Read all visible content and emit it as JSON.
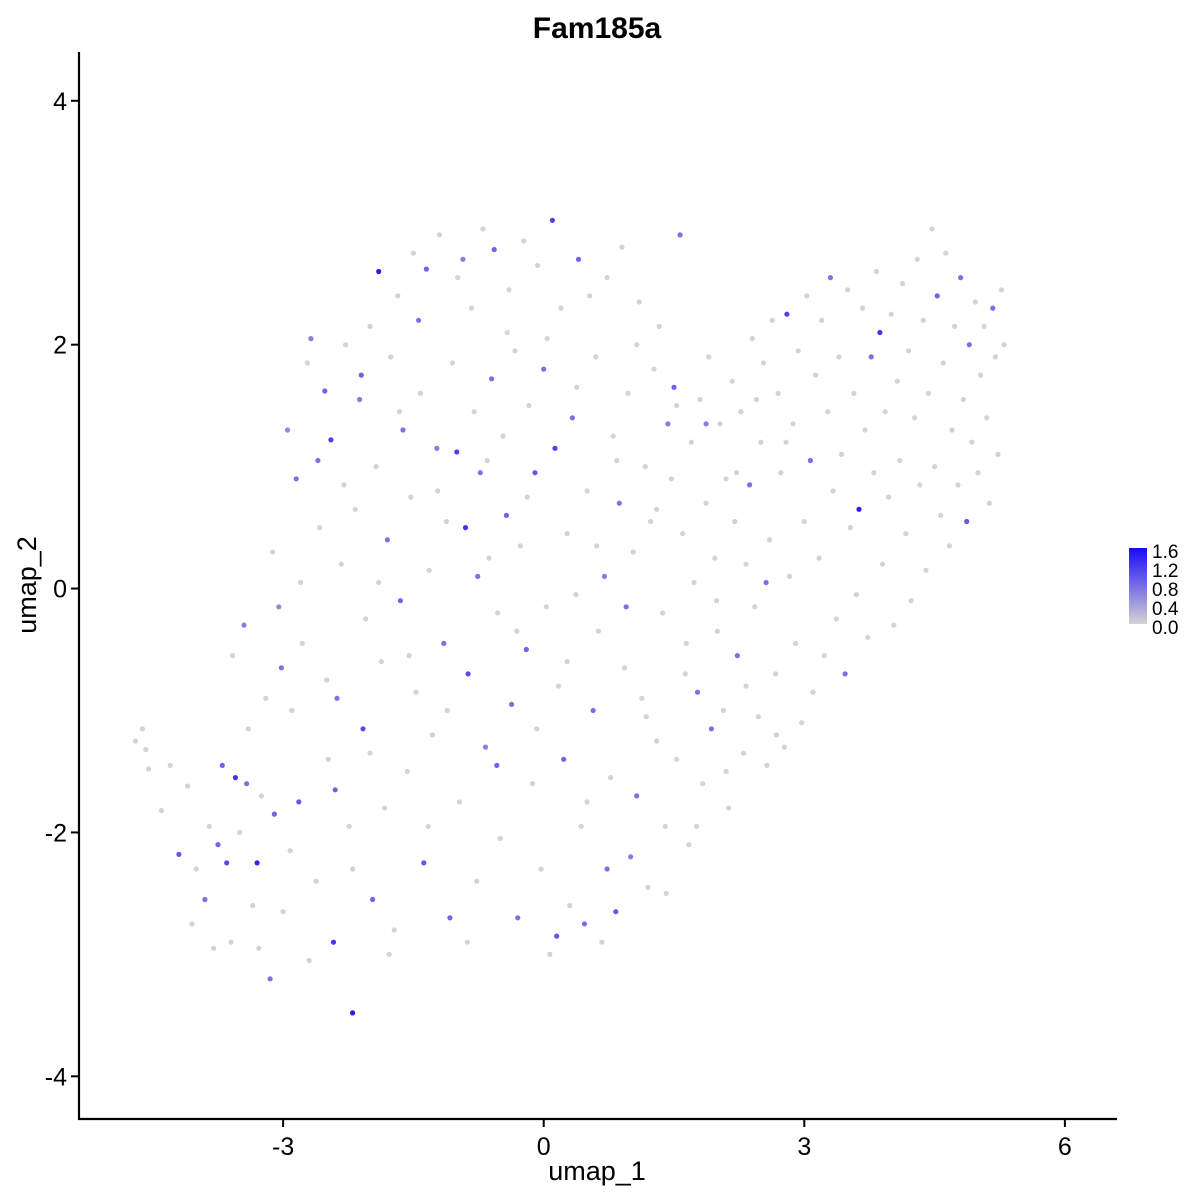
{
  "chart_data": {
    "type": "scatter",
    "title": "Fam185a",
    "xlabel": "umap_1",
    "ylabel": "umap_2",
    "xlim": [
      -5.35,
      6.6
    ],
    "ylim": [
      -4.35,
      4.4
    ],
    "x_ticks": [
      -3,
      0,
      3,
      6
    ],
    "y_ticks": [
      -4,
      -2,
      0,
      2,
      4
    ],
    "grid": false,
    "legend": {
      "placement": "right",
      "type": "colorbar",
      "labels": [
        "1.6",
        "1.2",
        "0.8",
        "0.4",
        "0.0"
      ],
      "range": [
        0.0,
        1.65
      ],
      "low_color": "#d3d3d3",
      "high_color": "#1a0af5"
    },
    "points": [
      [
        -4.7,
        -1.25,
        0
      ],
      [
        -4.62,
        -1.15,
        0
      ],
      [
        -4.58,
        -1.32,
        0
      ],
      [
        -4.55,
        -1.48,
        0
      ],
      [
        -4.4,
        -1.82,
        0
      ],
      [
        -4.2,
        -2.18,
        1.0
      ],
      [
        -4.1,
        -1.62,
        0
      ],
      [
        -4.0,
        -2.3,
        0
      ],
      [
        -3.9,
        -2.55,
        0.8
      ],
      [
        -3.85,
        -1.95,
        0
      ],
      [
        -3.8,
        -2.95,
        0
      ],
      [
        -3.7,
        -1.45,
        0.9
      ],
      [
        -3.65,
        -2.25,
        1.1
      ],
      [
        -3.6,
        -2.9,
        0
      ],
      [
        -3.55,
        -1.55,
        1.3
      ],
      [
        -3.5,
        -2.0,
        0
      ],
      [
        -3.45,
        -0.3,
        0.7
      ],
      [
        -3.4,
        -1.15,
        0
      ],
      [
        -3.35,
        -2.6,
        0
      ],
      [
        -3.3,
        -2.25,
        1.4
      ],
      [
        -3.25,
        -1.7,
        0
      ],
      [
        -3.2,
        -0.9,
        0
      ],
      [
        -3.15,
        -3.2,
        0.8
      ],
      [
        -3.1,
        -1.85,
        0.9
      ],
      [
        -3.05,
        -0.15,
        0.6
      ],
      [
        -3.0,
        -2.65,
        0
      ],
      [
        -2.95,
        1.3,
        0.6
      ],
      [
        -2.9,
        -1.0,
        0
      ],
      [
        -2.85,
        0.9,
        0.8
      ],
      [
        -2.82,
        -1.75,
        1.0
      ],
      [
        -2.78,
        -0.45,
        0
      ],
      [
        -2.72,
        1.85,
        0
      ],
      [
        -2.68,
        2.05,
        0.7
      ],
      [
        -2.62,
        -2.4,
        0
      ],
      [
        -2.58,
        0.5,
        0
      ],
      [
        -2.52,
        1.62,
        0.9
      ],
      [
        -2.48,
        -1.4,
        0
      ],
      [
        -2.45,
        1.22,
        1.2
      ],
      [
        -2.42,
        -2.9,
        1.3
      ],
      [
        -2.38,
        -0.9,
        0.8
      ],
      [
        -2.33,
        0.2,
        0
      ],
      [
        -2.28,
        2.0,
        0
      ],
      [
        -2.24,
        -1.95,
        0
      ],
      [
        -2.2,
        -3.48,
        1.5
      ],
      [
        -2.17,
        0.65,
        0
      ],
      [
        -2.12,
        1.55,
        0.7
      ],
      [
        -2.08,
        -1.15,
        1.1
      ],
      [
        -2.05,
        -0.25,
        0
      ],
      [
        -2.0,
        2.15,
        0
      ],
      [
        -1.97,
        -2.55,
        0.9
      ],
      [
        -1.93,
        1.0,
        0
      ],
      [
        -1.9,
        2.6,
        1.5
      ],
      [
        -1.87,
        -0.6,
        0
      ],
      [
        -1.83,
        -1.8,
        0
      ],
      [
        -1.8,
        0.4,
        0.8
      ],
      [
        -1.76,
        1.9,
        0
      ],
      [
        -1.72,
        -2.8,
        0
      ],
      [
        -1.68,
        2.4,
        0
      ],
      [
        -1.65,
        -0.1,
        0.9
      ],
      [
        -1.62,
        1.3,
        0.8
      ],
      [
        -1.57,
        -1.5,
        0
      ],
      [
        -1.53,
        0.75,
        0
      ],
      [
        -1.5,
        2.75,
        0
      ],
      [
        -1.47,
        -0.85,
        0
      ],
      [
        -1.42,
        1.6,
        0
      ],
      [
        -1.38,
        -2.25,
        1.0
      ],
      [
        -1.35,
        2.62,
        0.9
      ],
      [
        -1.32,
        0.15,
        0
      ],
      [
        -1.28,
        -1.2,
        0
      ],
      [
        -1.23,
        1.15,
        0.7
      ],
      [
        -1.2,
        2.9,
        0
      ],
      [
        -1.15,
        -0.45,
        0.8
      ],
      [
        -1.12,
        0.55,
        0
      ],
      [
        -1.08,
        -2.7,
        0.9
      ],
      [
        -1.05,
        1.85,
        0
      ],
      [
        -1.0,
        1.12,
        1.2
      ],
      [
        -0.97,
        -1.75,
        0
      ],
      [
        -0.93,
        2.7,
        0.7
      ],
      [
        -0.9,
        0.5,
        1.3
      ],
      [
        -0.87,
        -0.7,
        1.1
      ],
      [
        -0.83,
        2.3,
        0
      ],
      [
        -0.8,
        1.45,
        0
      ],
      [
        -0.77,
        -2.4,
        0
      ],
      [
        -0.73,
        0.95,
        0.8
      ],
      [
        -0.7,
        2.95,
        0
      ],
      [
        -0.67,
        -1.3,
        0.7
      ],
      [
        -0.63,
        0.25,
        0
      ],
      [
        -0.6,
        1.72,
        0.8
      ],
      [
        -0.57,
        2.78,
        0.9
      ],
      [
        -0.53,
        -0.2,
        0
      ],
      [
        -0.5,
        -2.05,
        0
      ],
      [
        -0.47,
        1.25,
        0
      ],
      [
        -0.43,
        0.6,
        0.9
      ],
      [
        -0.4,
        2.45,
        0
      ],
      [
        -0.37,
        -0.95,
        0.8
      ],
      [
        -0.33,
        1.95,
        0
      ],
      [
        -0.3,
        -2.7,
        0.8
      ],
      [
        -0.27,
        0.35,
        0
      ],
      [
        -0.23,
        2.85,
        0
      ],
      [
        -0.2,
        -0.5,
        0.9
      ],
      [
        -0.17,
        1.5,
        0
      ],
      [
        -0.13,
        -1.6,
        0
      ],
      [
        -0.1,
        0.95,
        1.0
      ],
      [
        -0.07,
        2.65,
        0
      ],
      [
        -0.03,
        -2.3,
        0
      ],
      [
        0.0,
        1.8,
        0.8
      ],
      [
        0.03,
        -0.15,
        0
      ],
      [
        0.07,
        -3.0,
        0
      ],
      [
        0.1,
        3.02,
        1.2
      ],
      [
        0.13,
        1.15,
        1.2
      ],
      [
        0.17,
        -0.8,
        0
      ],
      [
        0.2,
        2.3,
        0
      ],
      [
        0.23,
        -1.4,
        0.9
      ],
      [
        0.27,
        0.45,
        0
      ],
      [
        0.3,
        -2.6,
        0
      ],
      [
        0.33,
        1.4,
        0.8
      ],
      [
        0.37,
        -0.05,
        0
      ],
      [
        0.4,
        2.7,
        0.9
      ],
      [
        0.43,
        -1.95,
        0
      ],
      [
        0.47,
        -2.75,
        0.8
      ],
      [
        0.5,
        0.8,
        0
      ],
      [
        0.53,
        2.4,
        0
      ],
      [
        0.57,
        -1.0,
        0.8
      ],
      [
        0.6,
        1.9,
        0
      ],
      [
        0.63,
        -0.35,
        0
      ],
      [
        0.67,
        -2.9,
        0
      ],
      [
        0.7,
        0.1,
        0.7
      ],
      [
        0.73,
        2.55,
        0
      ],
      [
        0.77,
        -1.55,
        0
      ],
      [
        0.8,
        1.25,
        0
      ],
      [
        0.83,
        -2.65,
        1.0
      ],
      [
        0.87,
        0.7,
        0.8
      ],
      [
        0.9,
        2.8,
        0
      ],
      [
        0.93,
        -0.65,
        0
      ],
      [
        0.97,
        1.6,
        0
      ],
      [
        1.0,
        -2.2,
        0.7
      ],
      [
        1.03,
        0.3,
        0
      ],
      [
        1.07,
        -1.7,
        0.8
      ],
      [
        1.1,
        2.35,
        0
      ],
      [
        1.13,
        -0.9,
        0
      ],
      [
        1.17,
        1.0,
        0
      ],
      [
        1.2,
        -2.45,
        0
      ],
      [
        1.23,
        0.55,
        0
      ],
      [
        1.27,
        1.8,
        0
      ],
      [
        1.3,
        -1.25,
        0
      ],
      [
        1.33,
        2.15,
        0
      ],
      [
        1.37,
        -0.2,
        0
      ],
      [
        1.4,
        -1.95,
        0
      ],
      [
        1.43,
        1.35,
        0.7
      ],
      [
        1.47,
        0.9,
        0
      ],
      [
        1.5,
        1.65,
        0.9
      ],
      [
        1.53,
        -1.4,
        0
      ],
      [
        1.57,
        2.9,
        0.8
      ],
      [
        1.6,
        0.45,
        0
      ],
      [
        1.63,
        -0.7,
        0
      ],
      [
        1.67,
        -2.1,
        0
      ],
      [
        1.7,
        1.2,
        0
      ],
      [
        1.73,
        0.05,
        0
      ],
      [
        1.77,
        -0.85,
        0.8
      ],
      [
        1.8,
        1.55,
        0
      ],
      [
        1.83,
        -1.6,
        0
      ],
      [
        1.87,
        0.7,
        0
      ],
      [
        1.9,
        1.9,
        0
      ],
      [
        1.93,
        -1.15,
        0.8
      ],
      [
        1.97,
        0.25,
        0
      ],
      [
        2.0,
        -0.35,
        0
      ],
      [
        2.03,
        1.35,
        0
      ],
      [
        2.07,
        -1.0,
        0
      ],
      [
        2.1,
        0.9,
        0
      ],
      [
        2.13,
        -1.8,
        0
      ],
      [
        2.17,
        1.7,
        0
      ],
      [
        2.2,
        0.55,
        0
      ],
      [
        2.23,
        -0.55,
        0.8
      ],
      [
        2.27,
        1.45,
        0
      ],
      [
        2.3,
        -1.35,
        0
      ],
      [
        2.33,
        0.2,
        0
      ],
      [
        2.37,
        0.85,
        0.8
      ],
      [
        2.4,
        2.05,
        0
      ],
      [
        2.43,
        -0.15,
        0
      ],
      [
        2.47,
        -1.05,
        0
      ],
      [
        2.5,
        1.2,
        0
      ],
      [
        2.53,
        1.85,
        0
      ],
      [
        2.57,
        -1.45,
        0
      ],
      [
        2.6,
        0.4,
        0
      ],
      [
        2.63,
        2.2,
        0
      ],
      [
        2.67,
        -0.7,
        0
      ],
      [
        2.7,
        1.6,
        0
      ],
      [
        2.73,
        0.95,
        0
      ],
      [
        2.77,
        -1.3,
        0
      ],
      [
        2.8,
        2.25,
        1.2
      ],
      [
        2.83,
        0.1,
        0
      ],
      [
        2.87,
        1.35,
        0
      ],
      [
        2.9,
        -0.45,
        0
      ],
      [
        2.93,
        1.95,
        0
      ],
      [
        2.97,
        -1.1,
        0
      ],
      [
        3.0,
        0.55,
        0
      ],
      [
        3.03,
        2.4,
        0
      ],
      [
        3.07,
        1.05,
        0.8
      ],
      [
        3.1,
        -0.85,
        0
      ],
      [
        3.13,
        1.75,
        0
      ],
      [
        3.17,
        0.25,
        0
      ],
      [
        3.2,
        2.2,
        0
      ],
      [
        3.23,
        -0.55,
        0
      ],
      [
        3.27,
        1.45,
        0
      ],
      [
        3.3,
        2.55,
        0.8
      ],
      [
        3.33,
        0.8,
        0
      ],
      [
        3.37,
        -0.25,
        0
      ],
      [
        3.4,
        1.9,
        0
      ],
      [
        3.43,
        1.1,
        0
      ],
      [
        3.47,
        -0.7,
        0.8
      ],
      [
        3.5,
        2.45,
        0
      ],
      [
        3.53,
        0.5,
        0
      ],
      [
        3.57,
        1.6,
        0
      ],
      [
        3.6,
        -0.05,
        0
      ],
      [
        3.63,
        0.65,
        1.5
      ],
      [
        3.67,
        2.3,
        0
      ],
      [
        3.7,
        1.3,
        0
      ],
      [
        3.73,
        -0.4,
        0
      ],
      [
        3.77,
        1.9,
        0.8
      ],
      [
        3.8,
        0.95,
        0
      ],
      [
        3.83,
        2.6,
        0
      ],
      [
        3.87,
        2.1,
        1.3
      ],
      [
        3.9,
        0.2,
        0
      ],
      [
        3.93,
        1.45,
        0
      ],
      [
        3.97,
        0.75,
        0
      ],
      [
        4.0,
        2.25,
        0
      ],
      [
        4.03,
        -0.3,
        0
      ],
      [
        4.07,
        1.7,
        0
      ],
      [
        4.1,
        1.05,
        0
      ],
      [
        4.13,
        2.5,
        0
      ],
      [
        4.17,
        0.45,
        0
      ],
      [
        4.2,
        1.95,
        0
      ],
      [
        4.23,
        -0.1,
        0
      ],
      [
        4.27,
        1.4,
        0
      ],
      [
        4.3,
        2.7,
        0
      ],
      [
        4.33,
        0.85,
        0
      ],
      [
        4.37,
        2.2,
        0
      ],
      [
        4.4,
        0.15,
        0
      ],
      [
        4.43,
        1.6,
        0
      ],
      [
        4.47,
        2.95,
        0
      ],
      [
        4.5,
        1.0,
        0
      ],
      [
        4.53,
        2.4,
        0.9
      ],
      [
        4.57,
        0.6,
        0
      ],
      [
        4.6,
        1.85,
        0
      ],
      [
        4.63,
        2.75,
        0
      ],
      [
        4.67,
        0.35,
        0
      ],
      [
        4.7,
        1.3,
        0
      ],
      [
        4.73,
        2.15,
        0
      ],
      [
        4.77,
        0.85,
        0
      ],
      [
        4.8,
        2.55,
        0.8
      ],
      [
        4.83,
        1.55,
        0
      ],
      [
        4.87,
        0.55,
        1.0
      ],
      [
        4.9,
        2.0,
        0.8
      ],
      [
        4.93,
        1.2,
        0
      ],
      [
        4.97,
        2.35,
        0
      ],
      [
        5.0,
        0.95,
        0
      ],
      [
        5.03,
        1.75,
        0
      ],
      [
        5.07,
        2.15,
        0
      ],
      [
        5.1,
        1.4,
        0
      ],
      [
        5.13,
        0.7,
        0
      ],
      [
        5.17,
        2.3,
        0.8
      ],
      [
        5.2,
        1.9,
        0
      ],
      [
        5.23,
        1.1,
        0
      ],
      [
        5.27,
        2.45,
        0
      ],
      [
        5.3,
        2.0,
        0
      ],
      [
        -4.3,
        -1.45,
        0
      ],
      [
        -4.05,
        -2.75,
        0
      ],
      [
        -3.75,
        -2.1,
        0.9
      ],
      [
        -3.58,
        -0.55,
        0
      ],
      [
        -3.42,
        -1.6,
        0.8
      ],
      [
        -3.28,
        -2.95,
        0
      ],
      [
        -3.12,
        0.3,
        0
      ],
      [
        -3.02,
        -0.65,
        0.8
      ],
      [
        -2.92,
        -2.15,
        0
      ],
      [
        -2.8,
        0.05,
        0
      ],
      [
        -2.7,
        -3.05,
        0
      ],
      [
        -2.6,
        1.05,
        0.8
      ],
      [
        -2.5,
        -0.75,
        0
      ],
      [
        -2.4,
        -1.65,
        0.9
      ],
      [
        -2.3,
        0.85,
        0
      ],
      [
        -2.2,
        -2.3,
        0
      ],
      [
        -2.1,
        1.75,
        0.9
      ],
      [
        -2.0,
        -1.35,
        0
      ],
      [
        -1.9,
        0.05,
        0
      ],
      [
        -1.78,
        -3.0,
        0
      ],
      [
        -1.66,
        1.45,
        0
      ],
      [
        -1.55,
        -0.55,
        0
      ],
      [
        -1.44,
        2.2,
        0.8
      ],
      [
        -1.33,
        -1.95,
        0
      ],
      [
        -1.22,
        0.8,
        0
      ],
      [
        -1.11,
        -1.0,
        0
      ],
      [
        -0.99,
        2.55,
        0
      ],
      [
        -0.88,
        -2.9,
        0
      ],
      [
        -0.76,
        0.1,
        0.8
      ],
      [
        -0.65,
        1.05,
        0
      ],
      [
        -0.54,
        -1.45,
        0.9
      ],
      [
        -0.42,
        2.1,
        0
      ],
      [
        -0.31,
        -0.35,
        0
      ],
      [
        -0.19,
        0.75,
        0
      ],
      [
        -0.08,
        -1.15,
        0
      ],
      [
        0.04,
        2.05,
        0
      ],
      [
        0.15,
        -2.85,
        1.0
      ],
      [
        0.27,
        -0.6,
        0
      ],
      [
        0.38,
        1.65,
        0
      ],
      [
        0.5,
        -1.75,
        0
      ],
      [
        0.61,
        0.35,
        0
      ],
      [
        0.73,
        -2.3,
        0.8
      ],
      [
        0.84,
        1.05,
        0
      ],
      [
        0.95,
        -0.15,
        0.8
      ],
      [
        1.07,
        2.0,
        0
      ],
      [
        1.18,
        -1.05,
        0
      ],
      [
        1.3,
        0.65,
        0
      ],
      [
        1.41,
        -2.5,
        0
      ],
      [
        1.53,
        1.5,
        0
      ],
      [
        1.64,
        -0.45,
        0
      ],
      [
        1.76,
        -1.95,
        0
      ],
      [
        1.87,
        1.35,
        0.7
      ],
      [
        1.99,
        -0.1,
        0
      ],
      [
        2.1,
        -1.5,
        0
      ],
      [
        2.22,
        0.95,
        0
      ],
      [
        2.33,
        -0.8,
        0
      ],
      [
        2.45,
        1.55,
        0
      ],
      [
        2.56,
        0.05,
        0.8
      ],
      [
        2.68,
        -1.2,
        0
      ],
      [
        2.79,
        1.2,
        0
      ]
    ]
  }
}
